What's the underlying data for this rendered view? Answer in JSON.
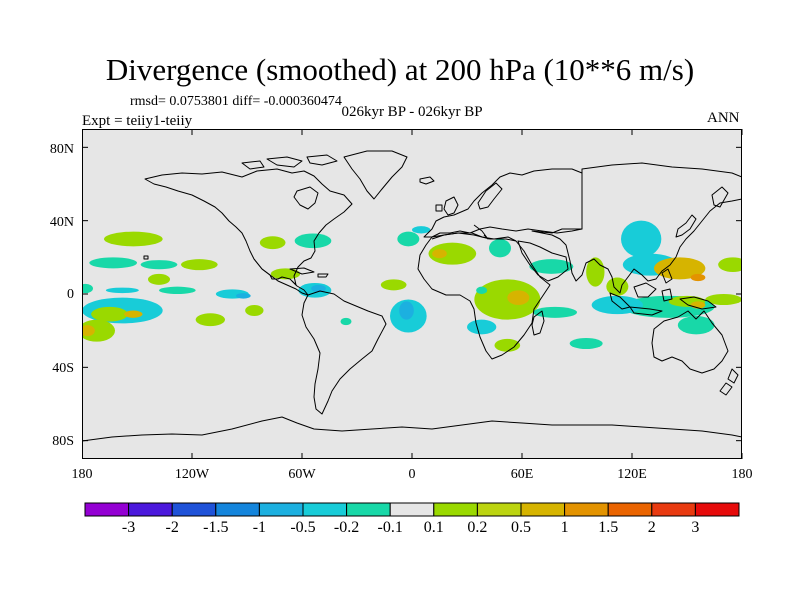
{
  "title": "Divergence (smoothed) at 200 hPa (10**6 m/s)",
  "stats": "rmsd= 0.0753801 diff= -0.000360474",
  "experiment": "Expt = teiiy1-teiiy",
  "period": "026kyr BP - 026kyr BP",
  "season": "ANN",
  "map": {
    "projection": "cylindrical equidistant",
    "lon_range": [
      -180,
      180
    ],
    "lat_range": [
      -90,
      90
    ],
    "ocean_color": "#e6e6e6",
    "coast_color": "#000000"
  },
  "y_ticks": [
    {
      "lat": 80,
      "label": "80N"
    },
    {
      "lat": 40,
      "label": "40N"
    },
    {
      "lat": 0,
      "label": "0"
    },
    {
      "lat": -40,
      "label": "40S"
    },
    {
      "lat": -80,
      "label": "80S"
    }
  ],
  "x_ticks": [
    {
      "lon": -180,
      "label": "180"
    },
    {
      "lon": -120,
      "label": "120W"
    },
    {
      "lon": -60,
      "label": "60W"
    },
    {
      "lon": 0,
      "label": "0"
    },
    {
      "lon": 60,
      "label": "60E"
    },
    {
      "lon": 120,
      "label": "120E"
    },
    {
      "lon": 180,
      "label": "180"
    }
  ],
  "colorbar": {
    "colors": [
      "#9400d3",
      "#4b18dc",
      "#1f52d8",
      "#1485dc",
      "#1cb0e0",
      "#18ccd8",
      "#18d8a8",
      "#e6e6e6",
      "#9ad900",
      "#bcd410",
      "#d6b400",
      "#e39300",
      "#ea6400",
      "#e83a10",
      "#e60a0a"
    ],
    "labels": [
      "-3",
      "-2",
      "-1.5",
      "-1",
      "-0.5",
      "-0.2",
      "-0.1",
      "0.1",
      "0.2",
      "0.5",
      "1",
      "1.5",
      "2",
      "3"
    ]
  },
  "fields": [
    {
      "lon": -152,
      "lat": 30,
      "rx": 16,
      "ry": 4,
      "c": 8
    },
    {
      "lon": -163,
      "lat": 17,
      "rx": 13,
      "ry": 3,
      "c": 6
    },
    {
      "lon": -138,
      "lat": 16,
      "rx": 10,
      "ry": 2.5,
      "c": 6
    },
    {
      "lon": -116,
      "lat": 16,
      "rx": 10,
      "ry": 3,
      "c": 8
    },
    {
      "lon": -138,
      "lat": 8,
      "rx": 6,
      "ry": 3,
      "c": 8
    },
    {
      "lon": -158,
      "lat": 2,
      "rx": 9,
      "ry": 1.5,
      "c": 5
    },
    {
      "lon": -178,
      "lat": 3,
      "rx": 4,
      "ry": 2.5,
      "c": 6
    },
    {
      "lon": -128,
      "lat": 2,
      "rx": 10,
      "ry": 2,
      "c": 6
    },
    {
      "lon": -158,
      "lat": -9,
      "rx": 22,
      "ry": 7,
      "c": 5
    },
    {
      "lon": -165,
      "lat": -11,
      "rx": 10,
      "ry": 4,
      "c": 8
    },
    {
      "lon": -152,
      "lat": -11,
      "rx": 5,
      "ry": 2,
      "c": 10
    },
    {
      "lon": -172,
      "lat": -20,
      "rx": 10,
      "ry": 6,
      "c": 8
    },
    {
      "lon": -177,
      "lat": -20,
      "rx": 4,
      "ry": 3,
      "c": 10
    },
    {
      "lon": -110,
      "lat": -14,
      "rx": 8,
      "ry": 3.5,
      "c": 8
    },
    {
      "lon": -98,
      "lat": 0,
      "rx": 9,
      "ry": 2.5,
      "c": 5
    },
    {
      "lon": -92,
      "lat": -1,
      "rx": 4,
      "ry": 1.5,
      "c": 4
    },
    {
      "lon": -86,
      "lat": -9,
      "rx": 5,
      "ry": 3,
      "c": 8
    },
    {
      "lon": -69,
      "lat": 11,
      "rx": 8,
      "ry": 3,
      "c": 8
    },
    {
      "lon": -53,
      "lat": 2,
      "rx": 9,
      "ry": 4,
      "c": 5
    },
    {
      "lon": -51,
      "lat": 3,
      "rx": 4,
      "ry": 2,
      "c": 4
    },
    {
      "lon": -76,
      "lat": 28,
      "rx": 7,
      "ry": 3.5,
      "c": 8
    },
    {
      "lon": -54,
      "lat": 29,
      "rx": 10,
      "ry": 4,
      "c": 6
    },
    {
      "lon": -36,
      "lat": -15,
      "rx": 3,
      "ry": 2,
      "c": 6
    },
    {
      "lon": -2,
      "lat": -12,
      "rx": 10,
      "ry": 9,
      "c": 5
    },
    {
      "lon": -3,
      "lat": -9,
      "rx": 4,
      "ry": 5,
      "c": 4
    },
    {
      "lon": -2,
      "lat": 30,
      "rx": 6,
      "ry": 4,
      "c": 6
    },
    {
      "lon": 5,
      "lat": 35,
      "rx": 5,
      "ry": 2,
      "c": 5
    },
    {
      "lon": -10,
      "lat": 5,
      "rx": 7,
      "ry": 3,
      "c": 8
    },
    {
      "lon": 22,
      "lat": 22,
      "rx": 13,
      "ry": 6,
      "c": 8
    },
    {
      "lon": 15,
      "lat": 22,
      "rx": 4,
      "ry": 2.5,
      "c": 10
    },
    {
      "lon": 48,
      "lat": 25,
      "rx": 6,
      "ry": 5,
      "c": 6
    },
    {
      "lon": 52,
      "lat": -3,
      "rx": 18,
      "ry": 11,
      "c": 8
    },
    {
      "lon": 58,
      "lat": -2,
      "rx": 6,
      "ry": 4,
      "c": 10
    },
    {
      "lon": 38,
      "lat": -18,
      "rx": 8,
      "ry": 4,
      "c": 5
    },
    {
      "lon": 52,
      "lat": -28,
      "rx": 7,
      "ry": 3.5,
      "c": 8
    },
    {
      "lon": 78,
      "lat": -10,
      "rx": 12,
      "ry": 3,
      "c": 6
    },
    {
      "lon": 95,
      "lat": -27,
      "rx": 9,
      "ry": 3,
      "c": 6
    },
    {
      "lon": 76,
      "lat": 15,
      "rx": 12,
      "ry": 4,
      "c": 6
    },
    {
      "lon": 100,
      "lat": 12,
      "rx": 5,
      "ry": 8,
      "c": 8
    },
    {
      "lon": 125,
      "lat": 30,
      "rx": 11,
      "ry": 10,
      "c": 5
    },
    {
      "lon": 130,
      "lat": 16,
      "rx": 15,
      "ry": 6,
      "c": 5
    },
    {
      "lon": 146,
      "lat": 14,
      "rx": 14,
      "ry": 6,
      "c": 10
    },
    {
      "lon": 156,
      "lat": 9,
      "rx": 4,
      "ry": 2,
      "c": 11
    },
    {
      "lon": 175,
      "lat": 16,
      "rx": 8,
      "ry": 4,
      "c": 8
    },
    {
      "lon": 170,
      "lat": -3,
      "rx": 10,
      "ry": 3,
      "c": 8
    },
    {
      "lon": 140,
      "lat": -7,
      "rx": 25,
      "ry": 6,
      "c": 6
    },
    {
      "lon": 150,
      "lat": -4,
      "rx": 10,
      "ry": 3,
      "c": 8
    },
    {
      "lon": 156,
      "lat": -6,
      "rx": 4,
      "ry": 2,
      "c": 10
    },
    {
      "lon": 155,
      "lat": -17,
      "rx": 10,
      "ry": 5,
      "c": 6
    },
    {
      "lon": 112,
      "lat": -6,
      "rx": 14,
      "ry": 5,
      "c": 5
    },
    {
      "lon": 112,
      "lat": 4,
      "rx": 6,
      "ry": 5,
      "c": 8
    },
    {
      "lon": 38,
      "lat": 2,
      "rx": 3,
      "ry": 2,
      "c": 6
    }
  ]
}
